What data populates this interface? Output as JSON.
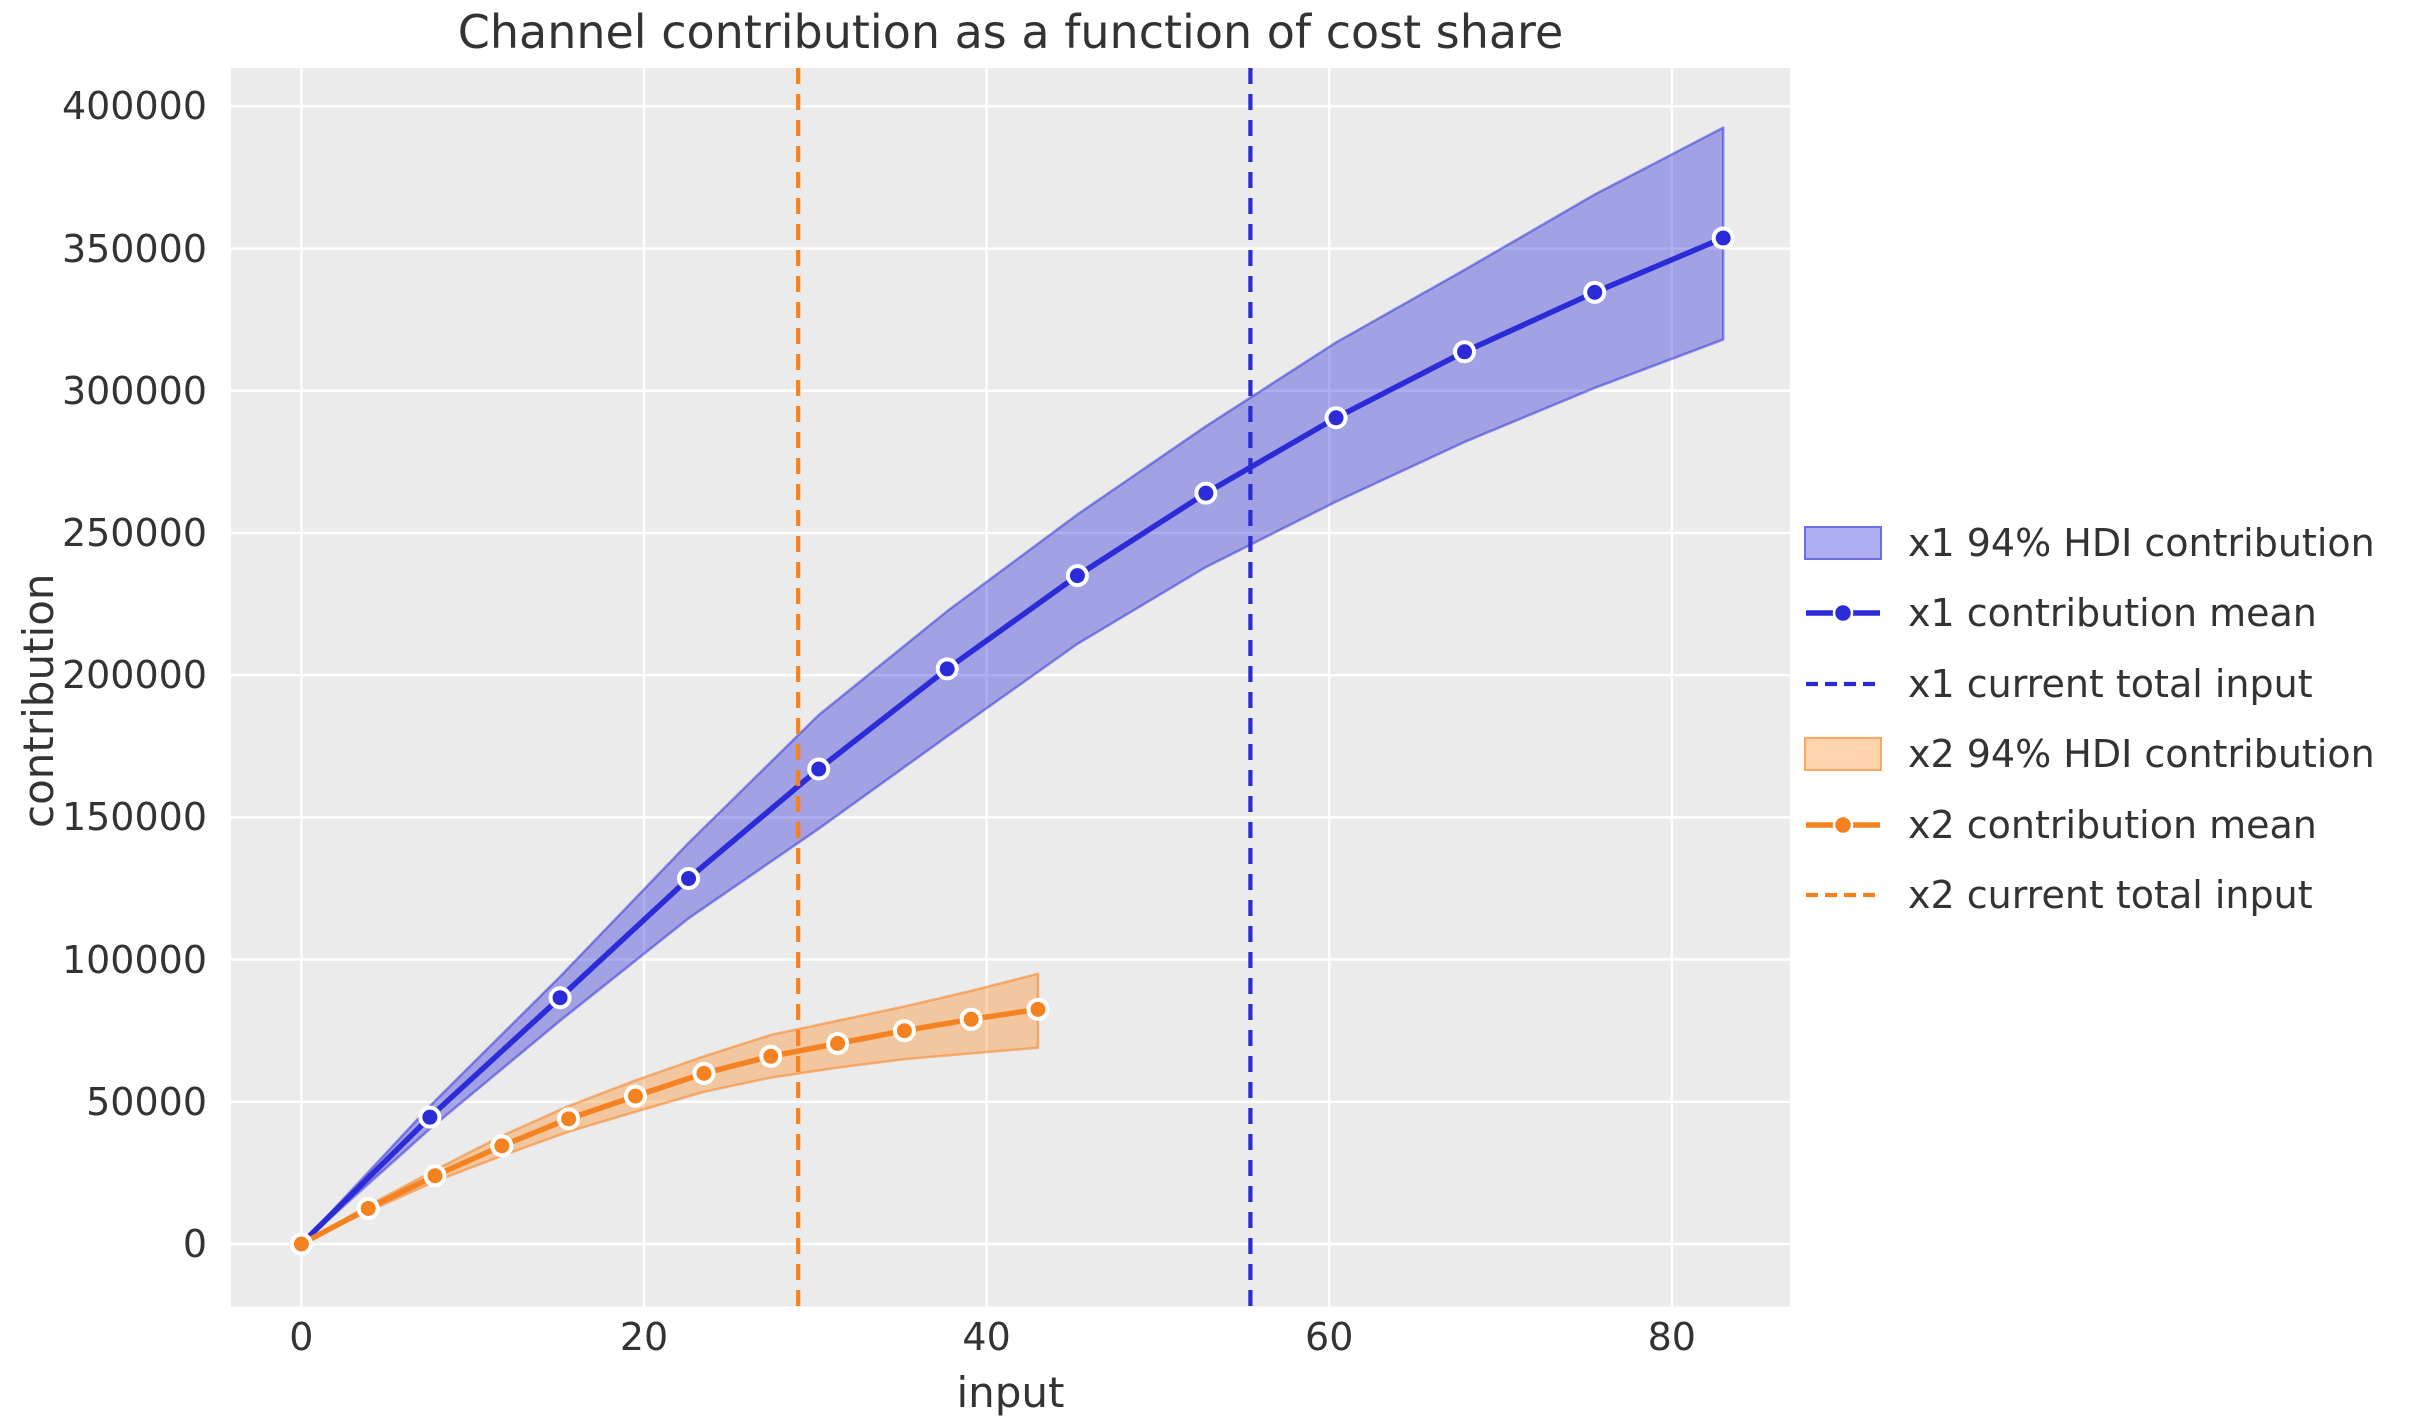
{
  "figure": {
    "kind": "matplotlib-line-chart-screenshot"
  },
  "colors": {
    "background": "#ffffff",
    "plot_background": "#ebebeb",
    "gridline": "#ffffff",
    "text": "#333333",
    "x1_blue": "#2b2bd8",
    "x1_band_fill": "rgba(43,43,216,0.38)",
    "x1_band_edge": "rgba(43,43,216,0.50)",
    "x2_orange": "#f58220",
    "x2_band_fill": "rgba(255,133,20,0.35)",
    "x2_band_edge": "rgba(245,130,32,0.55)",
    "marker_edge": "#ffffff"
  },
  "chart_data": {
    "type": "line",
    "title": "Channel contribution as a function of cost share",
    "xlabel": "input",
    "ylabel": "contribution",
    "xlim": [
      -4.11,
      86.9
    ],
    "ylim": [
      -21975,
      413480
    ],
    "xticks": [
      0,
      20,
      40,
      60,
      80
    ],
    "yticks": [
      0,
      50000,
      100000,
      150000,
      200000,
      250000,
      300000,
      350000,
      400000
    ],
    "grid": true,
    "legend_position": "outside-right",
    "series": [
      {
        "name": "x1 94% HDI contribution",
        "type": "band",
        "color": "#2b2bd8",
        "fill": "rgba(43,43,216,0.38)",
        "edge": "rgba(43,43,216,0.50)",
        "x": [
          0,
          7.5,
          15.1,
          22.6,
          30.2,
          37.7,
          45.3,
          52.8,
          60.4,
          67.9,
          75.5,
          83
        ],
        "lower": [
          0,
          40500,
          78500,
          114500,
          146000,
          178500,
          211000,
          238000,
          261000,
          282000,
          301000,
          318000
        ],
        "upper": [
          0,
          48500,
          94000,
          141000,
          186000,
          222500,
          256500,
          287500,
          317000,
          342500,
          369000,
          392500
        ]
      },
      {
        "name": "x1 contribution mean",
        "type": "line-markers",
        "color": "#2b2bd8",
        "x": [
          0,
          7.5,
          15.1,
          22.6,
          30.2,
          37.7,
          45.3,
          52.8,
          60.4,
          67.9,
          75.5,
          83
        ],
        "y": [
          0,
          44600,
          86600,
          128500,
          167000,
          202200,
          235000,
          264000,
          290500,
          313700,
          334600,
          353700
        ]
      },
      {
        "name": "x1 current total input",
        "type": "vline",
        "style": "dashed",
        "color": "#2b2bd8",
        "x": 55.4
      },
      {
        "name": "x2 94% HDI contribution",
        "type": "band",
        "color": "#f58220",
        "fill": "rgba(255,133,20,0.35)",
        "edge": "rgba(245,130,32,0.55)",
        "x": [
          0,
          3.9,
          7.8,
          11.7,
          15.6,
          19.5,
          23.5,
          27.4,
          31.3,
          35.2,
          39.1,
          43
        ],
        "lower": [
          0,
          11500,
          22000,
          31000,
          39500,
          46500,
          53500,
          58500,
          62000,
          65000,
          67000,
          69000
        ],
        "upper": [
          0,
          13500,
          26000,
          38000,
          48500,
          57500,
          66000,
          73500,
          78500,
          83500,
          89000,
          95000
        ]
      },
      {
        "name": "x2 contribution mean",
        "type": "line-markers",
        "color": "#f58220",
        "x": [
          0,
          3.9,
          7.8,
          11.7,
          15.6,
          19.5,
          23.5,
          27.4,
          31.3,
          35.2,
          39.1,
          43
        ],
        "y": [
          0,
          12500,
          24000,
          34500,
          44000,
          52000,
          60000,
          66000,
          70500,
          75000,
          79000,
          82500
        ]
      },
      {
        "name": "x2 current total input",
        "type": "vline",
        "style": "dashed",
        "color": "#f58220",
        "x": 29.0
      }
    ]
  }
}
